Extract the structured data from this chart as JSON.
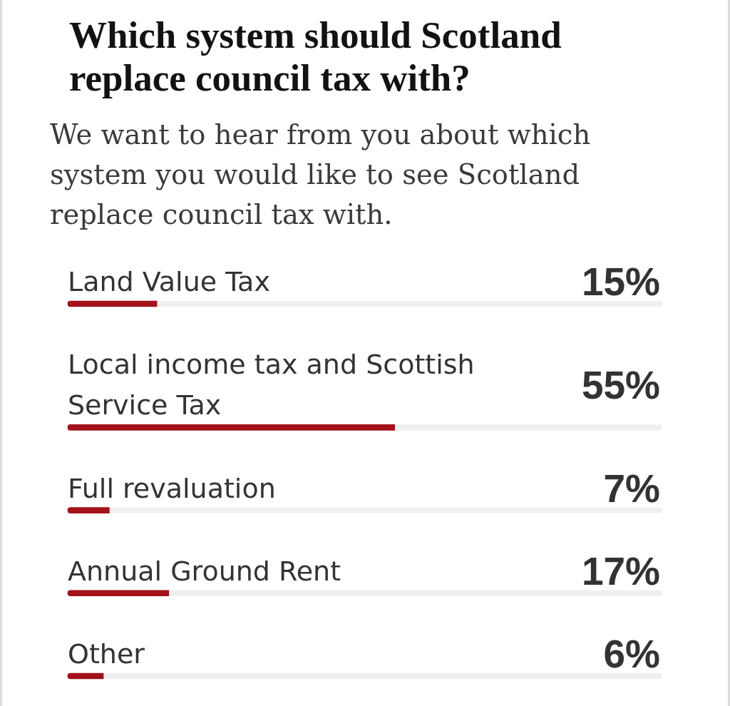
{
  "chart_data": {
    "type": "bar",
    "orientation": "horizontal",
    "title": "Which system should Scotland replace council tax with?",
    "subtitle": "We want to hear from you about which system you would like to see Scotland replace council tax with.",
    "categories": [
      "Land Value Tax",
      "Local income tax and Scottish Service Tax",
      "Full revaluation",
      "Annual Ground Rent",
      "Other"
    ],
    "values": [
      15,
      55,
      7,
      17,
      6
    ],
    "value_labels": [
      "15%",
      "55%",
      "7%",
      "17%",
      "6%"
    ],
    "color": "#a3111b",
    "xlim": [
      0,
      100
    ],
    "tick_labels": "y"
  }
}
